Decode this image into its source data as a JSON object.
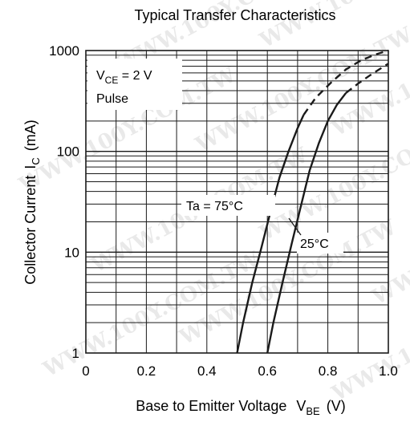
{
  "chart_data": {
    "type": "line",
    "title": "Typical Transfer Characteristics",
    "xlabel": "Base to Emitter Voltage",
    "xlabel_symbol": "V",
    "xlabel_symbol_sub": "BE",
    "xlabel_unit": "(V)",
    "ylabel": "Collector Current",
    "ylabel_symbol": "I",
    "ylabel_symbol_sub": "C",
    "ylabel_unit": "(mA)",
    "x_ticks": [
      "0",
      "0.2",
      "0.4",
      "0.6",
      "0.8",
      "1.0"
    ],
    "y_ticks": [
      "1",
      "10",
      "100",
      "1000"
    ],
    "xlim": [
      0,
      1.0
    ],
    "ylim": [
      1,
      1000
    ],
    "y_scale": "log",
    "grid": true,
    "conditions": {
      "vce_main": "V",
      "vce_sub": "CE",
      "vce_value": " = 2 V",
      "mode": "Pulse"
    },
    "series": [
      {
        "name": "Ta = 75°C",
        "x": [
          0.5,
          0.52,
          0.55,
          0.58,
          0.61,
          0.64,
          0.67,
          0.7,
          0.72
        ],
        "y": [
          1,
          2,
          5,
          11,
          25,
          55,
          100,
          170,
          230
        ],
        "dashed_x": [
          0.72,
          0.76,
          0.81,
          0.86,
          0.91,
          0.96,
          1.0
        ],
        "dashed_y": [
          230,
          340,
          480,
          650,
          800,
          920,
          1000
        ]
      },
      {
        "name": "25°C",
        "x": [
          0.6,
          0.62,
          0.65,
          0.68,
          0.71,
          0.74,
          0.77,
          0.8,
          0.83,
          0.86
        ],
        "y": [
          1,
          2,
          5,
          12,
          28,
          65,
          120,
          200,
          290,
          380
        ],
        "dashed_x": [
          0.86,
          0.9,
          0.94,
          0.98,
          1.0
        ],
        "dashed_y": [
          380,
          470,
          570,
          680,
          740
        ]
      }
    ]
  },
  "watermark": "WWW.100Y.COM.TW",
  "colors": {
    "line": "#1a1a1a",
    "grid": "#1a1a1a",
    "watermark": "#d8d8d8"
  }
}
